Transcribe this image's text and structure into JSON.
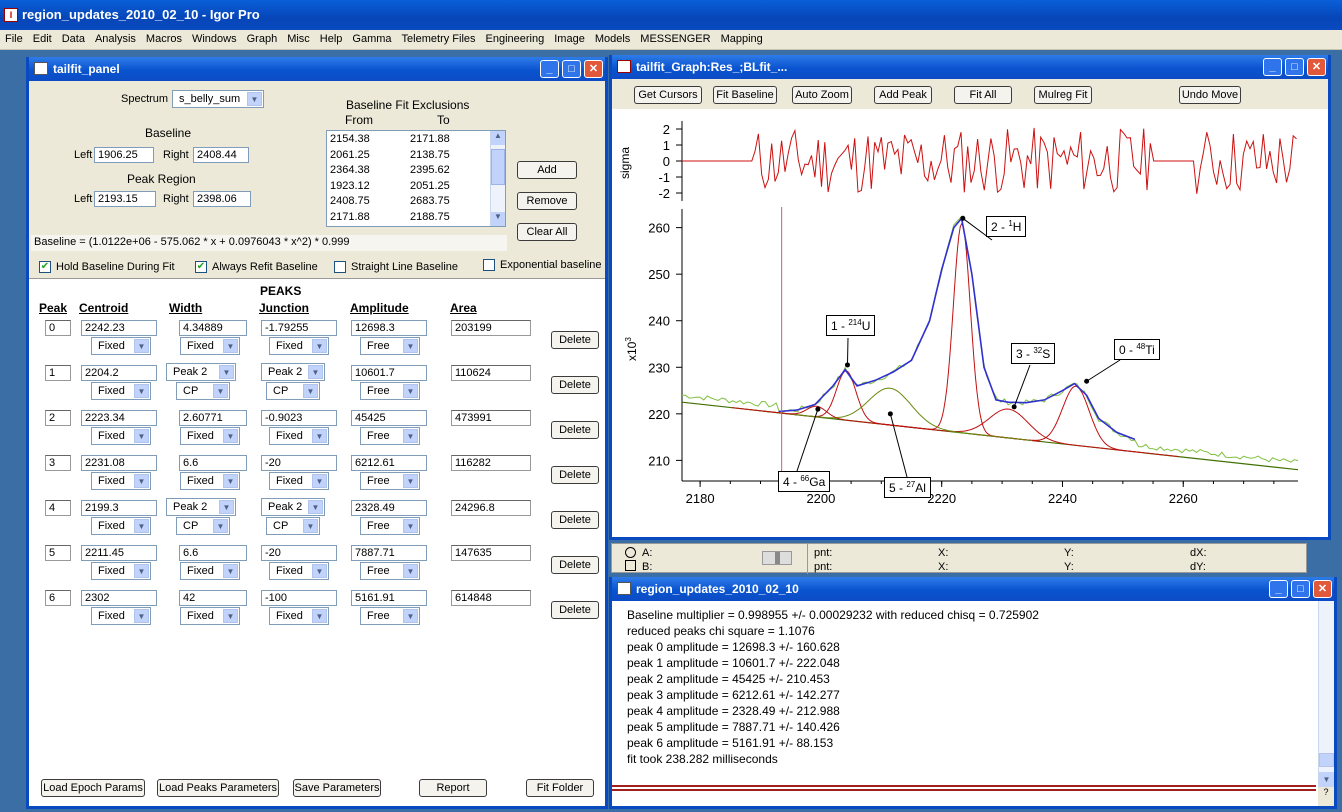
{
  "app": {
    "title": "region_updates_2010_02_10 - Igor Pro",
    "icon": "igor-icon"
  },
  "menu": [
    "File",
    "Edit",
    "Data",
    "Analysis",
    "Macros",
    "Windows",
    "Graph",
    "Misc",
    "Help",
    "Gamma",
    "Telemetry Files",
    "Engineering",
    "Image",
    "Models",
    "MESSENGER",
    "Mapping"
  ],
  "panel": {
    "title": "tailfit_panel",
    "spectrum_label": "Spectrum",
    "spectrum_value": "s_belly_sum",
    "baseline_label": "Baseline",
    "left_label": "Left",
    "right_label": "Right",
    "baseline_left": "1906.25",
    "baseline_right": "2408.44",
    "peak_region_label": "Peak Region",
    "peak_left": "2193.15",
    "peak_right": "2398.06",
    "exclusions_title": "Baseline Fit Exclusions",
    "from_label": "From",
    "to_label": "To",
    "exclusions": [
      [
        "2154.38",
        "2171.88"
      ],
      [
        "2061.25",
        "2138.75"
      ],
      [
        "2364.38",
        "2395.62"
      ],
      [
        "1923.12",
        "2051.25"
      ],
      [
        "2408.75",
        "2683.75"
      ],
      [
        "2171.88",
        "2188.75"
      ]
    ],
    "add": "Add",
    "remove": "Remove",
    "clear_all": "Clear All",
    "baseline_formula": "Baseline =  (1.0122e+06 - 575.062 * x + 0.0976043 * x^2) * 0.999",
    "checks": [
      {
        "label": "Hold Baseline During Fit",
        "checked": true
      },
      {
        "label": "Always Refit Baseline",
        "checked": true
      },
      {
        "label": "Straight Line Baseline",
        "checked": false
      },
      {
        "label": "Exponential baseline",
        "checked": false
      }
    ],
    "peaks_title": "PEAKS",
    "headers": {
      "peak": "Peak",
      "centroid": "Centroid",
      "width": "Width",
      "junction": "Junction",
      "amplitude": "Amplitude",
      "area": "Area"
    },
    "delete": "Delete",
    "rows": [
      {
        "n": "0",
        "centroid": "2242.23",
        "c_mode": "Fixed",
        "width": "4.34889",
        "w_mode": "Fixed",
        "junction": "-1.79255",
        "j_mode": "Fixed",
        "amplitude": "12698.3",
        "a_mode": "Free",
        "area": "203199"
      },
      {
        "n": "1",
        "centroid": "2204.2",
        "c_mode": "Fixed",
        "width": "Peak 2",
        "w_mode": "CP",
        "junction": "Peak 2",
        "j_mode": "CP",
        "amplitude": "10601.7",
        "a_mode": "Free",
        "area": "110624"
      },
      {
        "n": "2",
        "centroid": "2223.34",
        "c_mode": "Fixed",
        "width": "2.60771",
        "w_mode": "Fixed",
        "junction": "-0.9023",
        "j_mode": "Fixed",
        "amplitude": "45425",
        "a_mode": "Free",
        "area": "473991"
      },
      {
        "n": "3",
        "centroid": "2231.08",
        "c_mode": "Fixed",
        "width": "6.6",
        "w_mode": "Fixed",
        "junction": "-20",
        "j_mode": "Fixed",
        "amplitude": "6212.61",
        "a_mode": "Free",
        "area": "116282"
      },
      {
        "n": "4",
        "centroid": "2199.3",
        "c_mode": "Fixed",
        "width": "Peak 2",
        "w_mode": "CP",
        "junction": "Peak 2",
        "j_mode": "CP",
        "amplitude": "2328.49",
        "a_mode": "Free",
        "area": "24296.8"
      },
      {
        "n": "5",
        "centroid": "2211.45",
        "c_mode": "Fixed",
        "width": "6.6",
        "w_mode": "Fixed",
        "junction": "-20",
        "j_mode": "Fixed",
        "amplitude": "7887.71",
        "a_mode": "Free",
        "area": "147635"
      },
      {
        "n": "6",
        "centroid": "2302",
        "c_mode": "Fixed",
        "width": "42",
        "w_mode": "Fixed",
        "junction": "-100",
        "j_mode": "Fixed",
        "amplitude": "5161.91",
        "a_mode": "Free",
        "area": "614848"
      }
    ],
    "bottom_buttons": [
      "Load Epoch Params",
      "Load Peaks Parameters",
      "Save Parameters",
      "Report",
      "Fit Folder"
    ]
  },
  "graph": {
    "title": "tailfit_Graph:Res_;BLfit_...",
    "toolbar": [
      "Get Cursors",
      "Fit Baseline",
      "Auto Zoom",
      "Add Peak",
      "Fit All",
      "Mulreg Fit",
      "Undo Move"
    ],
    "sigma_label": "sigma",
    "y_label": "x10",
    "y_label_exp": "3",
    "labels": [
      {
        "a": "2 - ",
        "sup": "1",
        "b": "H"
      },
      {
        "a": "1 - ",
        "sup": "214",
        "b": "U"
      },
      {
        "a": "3 - ",
        "sup": "32",
        "b": "S"
      },
      {
        "a": "0 - ",
        "sup": "48",
        "b": "Ti"
      },
      {
        "a": "4 - ",
        "sup": "66",
        "b": "Ga"
      },
      {
        "a": "5 - ",
        "sup": "27",
        "b": "Al"
      }
    ],
    "cursor_bar": {
      "a": "A:",
      "b": "B:",
      "pnt": "pnt:",
      "x": "X:",
      "y": "Y:",
      "dx": "dX:",
      "dy": "dY:"
    }
  },
  "chart_data": {
    "type": "line",
    "x_ticks": [
      "2180",
      "2200",
      "2220",
      "2240",
      "2260"
    ],
    "y_ticks": [
      "210",
      "220",
      "230",
      "240",
      "250",
      "260"
    ],
    "sigma_ticks": [
      "2",
      "1",
      "0",
      "-1",
      "-2"
    ],
    "xlim": [
      2177,
      2279
    ],
    "ylim": [
      206,
      264
    ],
    "sigma_range": [
      -2.5,
      2.5
    ],
    "baseline": {
      "x": [
        2177,
        2279
      ],
      "y": [
        222.5,
        208
      ]
    },
    "fit": {
      "x": [
        2193,
        2196,
        2199,
        2202,
        2204,
        2206,
        2209,
        2212,
        2215,
        2218,
        2220,
        2222,
        2223.3,
        2225,
        2227,
        2229,
        2231,
        2234,
        2237,
        2240,
        2242,
        2244,
        2246,
        2249,
        2252
      ],
      "y": [
        220.5,
        220.8,
        222.0,
        226,
        229.5,
        226,
        227.2,
        229,
        231.5,
        240,
        251,
        260,
        262,
        250,
        230,
        223,
        222.5,
        222.4,
        223,
        225,
        226.5,
        224,
        219,
        216,
        214.5
      ]
    },
    "series_colors": {
      "data": "#80c040",
      "fit": "#3030d0",
      "residual": "#cc1010",
      "baseline": "#407000",
      "components": "#c01010",
      "cursor": "#cc6070"
    },
    "cursor_x": 2193.5,
    "peaks": [
      {
        "center": 2204.2,
        "amp": 10.6,
        "w": 1.6,
        "color": "#c01010"
      },
      {
        "center": 2223.34,
        "amp": 45,
        "w": 1.4,
        "color": "#c01010"
      },
      {
        "center": 2242.23,
        "amp": 12.7,
        "w": 2.2,
        "color": "#c01010"
      },
      {
        "center": 2231.08,
        "amp": 6.2,
        "w": 3.2,
        "color": "#c01010"
      },
      {
        "center": 2211.45,
        "amp": 7.9,
        "w": 3.5,
        "color": "#6a8a10"
      },
      {
        "center": 2199.3,
        "amp": 2.3,
        "w": 1.6,
        "color": "#c01010"
      }
    ]
  },
  "cmd": {
    "title": "region_updates_2010_02_10",
    "lines": [
      "Baseline multiplier =   0.998955    +/-   0.00029232    with reduced chisq =    0.725902",
      "reduced peaks chi square =    1.1076",
      "peak 0 amplitude = 12698.3 +/- 160.628",
      "peak 1 amplitude = 10601.7 +/- 222.048",
      "peak 2 amplitude = 45425 +/- 210.453",
      "peak 3 amplitude = 6212.61 +/- 142.277",
      "peak 4 amplitude = 2328.49 +/- 212.988",
      "peak 5 amplitude = 7887.71 +/- 140.426",
      "peak 6 amplitude = 5161.91 +/- 88.153",
      "fit took    238.282    milliseconds"
    ]
  }
}
